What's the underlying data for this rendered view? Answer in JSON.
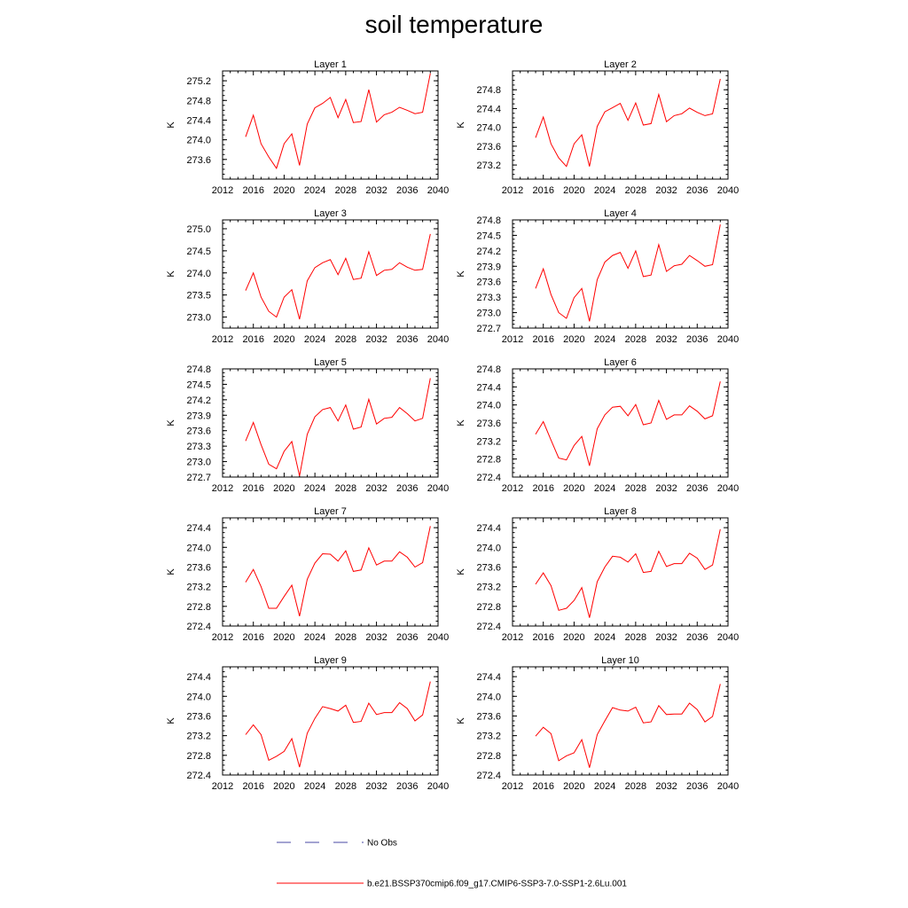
{
  "title": "soil temperature",
  "legend": {
    "obs_label": "No Obs",
    "obs_color": "#4a4aa6",
    "model_label": "b.e21.BSSP370cmip6.f09_g17.CMIP6-SSP3-7.0-SSP1-2.6Lu.001",
    "model_color": "#ff0000"
  },
  "chart_data": [
    {
      "type": "line",
      "title": "Layer 1",
      "ylabel": "K",
      "xlim": [
        2012,
        2040
      ],
      "ylim": [
        273.2,
        275.4
      ],
      "xticks": [
        "2012",
        "2016",
        "2020",
        "2024",
        "2028",
        "2032",
        "2036",
        "2040"
      ],
      "yticks": [
        "273.6",
        "274.0",
        "274.4",
        "274.8",
        "275.2"
      ],
      "x": [
        2015,
        2016,
        2017,
        2018,
        2019,
        2020,
        2021,
        2022,
        2023,
        2024,
        2025,
        2026,
        2027,
        2028,
        2029,
        2030,
        2031,
        2032,
        2033,
        2034,
        2035,
        2036,
        2037,
        2038,
        2039
      ],
      "series": [
        {
          "values": [
            274.06,
            274.5,
            273.92,
            273.65,
            273.42,
            273.92,
            274.12,
            273.48,
            274.32,
            274.65,
            274.74,
            274.86,
            274.45,
            274.82,
            274.35,
            274.37,
            275.02,
            274.36,
            274.51,
            274.56,
            274.66,
            274.6,
            274.53,
            274.56,
            275.35
          ]
        }
      ]
    },
    {
      "type": "line",
      "title": "Layer 2",
      "ylabel": "K",
      "xlim": [
        2012,
        2040
      ],
      "ylim": [
        272.9,
        275.2
      ],
      "xticks": [
        "2012",
        "2016",
        "2020",
        "2024",
        "2028",
        "2032",
        "2036",
        "2040"
      ],
      "yticks": [
        "273.2",
        "273.6",
        "274.0",
        "274.4",
        "274.8"
      ],
      "x": [
        2015,
        2016,
        2017,
        2018,
        2019,
        2020,
        2021,
        2022,
        2023,
        2024,
        2025,
        2026,
        2027,
        2028,
        2029,
        2030,
        2031,
        2032,
        2033,
        2034,
        2035,
        2036,
        2037,
        2038,
        2039
      ],
      "series": [
        {
          "values": [
            273.78,
            274.22,
            273.65,
            273.35,
            273.17,
            273.65,
            273.84,
            273.17,
            274.02,
            274.33,
            274.42,
            274.51,
            274.15,
            274.52,
            274.05,
            274.08,
            274.7,
            274.12,
            274.25,
            274.29,
            274.41,
            274.32,
            274.25,
            274.29,
            275.03
          ]
        }
      ]
    },
    {
      "type": "line",
      "title": "Layer 3",
      "ylabel": "K",
      "xlim": [
        2012,
        2040
      ],
      "ylim": [
        272.75,
        275.2
      ],
      "xticks": [
        "2012",
        "2016",
        "2020",
        "2024",
        "2028",
        "2032",
        "2036",
        "2040"
      ],
      "yticks": [
        "273.0",
        "273.5",
        "274.0",
        "274.5",
        "275.0"
      ],
      "x": [
        2015,
        2016,
        2017,
        2018,
        2019,
        2020,
        2021,
        2022,
        2023,
        2024,
        2025,
        2026,
        2027,
        2028,
        2029,
        2030,
        2031,
        2032,
        2033,
        2034,
        2035,
        2036,
        2037,
        2038,
        2039
      ],
      "series": [
        {
          "values": [
            273.6,
            274.0,
            273.45,
            273.13,
            273.0,
            273.45,
            273.62,
            272.95,
            273.82,
            274.12,
            274.23,
            274.3,
            273.96,
            274.33,
            273.85,
            273.88,
            274.48,
            273.94,
            274.06,
            274.08,
            274.23,
            274.13,
            274.06,
            274.08,
            274.88
          ]
        }
      ]
    },
    {
      "type": "line",
      "title": "Layer 4",
      "ylabel": "K",
      "xlim": [
        2012,
        2040
      ],
      "ylim": [
        272.7,
        274.8
      ],
      "xticks": [
        "2012",
        "2016",
        "2020",
        "2024",
        "2028",
        "2032",
        "2036",
        "2040"
      ],
      "yticks": [
        "272.7",
        "273.0",
        "273.3",
        "273.6",
        "273.9",
        "274.2",
        "274.5",
        "274.8"
      ],
      "x": [
        2015,
        2016,
        2017,
        2018,
        2019,
        2020,
        2021,
        2022,
        2023,
        2024,
        2025,
        2026,
        2027,
        2028,
        2029,
        2030,
        2031,
        2032,
        2033,
        2034,
        2035,
        2036,
        2037,
        2038,
        2039
      ],
      "series": [
        {
          "values": [
            273.47,
            273.85,
            273.35,
            273.0,
            272.89,
            273.29,
            273.47,
            272.83,
            273.64,
            273.98,
            274.11,
            274.17,
            273.86,
            274.2,
            273.7,
            273.73,
            274.32,
            273.8,
            273.91,
            273.94,
            274.11,
            274.01,
            273.9,
            273.93,
            274.71
          ]
        }
      ]
    },
    {
      "type": "line",
      "title": "Layer 5",
      "ylabel": "K",
      "xlim": [
        2012,
        2040
      ],
      "ylim": [
        272.7,
        274.8
      ],
      "xticks": [
        "2012",
        "2016",
        "2020",
        "2024",
        "2028",
        "2032",
        "2036",
        "2040"
      ],
      "yticks": [
        "272.7",
        "273.0",
        "273.3",
        "273.6",
        "273.9",
        "274.2",
        "274.5",
        "274.8"
      ],
      "x": [
        2015,
        2016,
        2017,
        2018,
        2019,
        2020,
        2021,
        2022,
        2023,
        2024,
        2025,
        2026,
        2027,
        2028,
        2029,
        2030,
        2031,
        2032,
        2033,
        2034,
        2035,
        2036,
        2037,
        2038,
        2039
      ],
      "series": [
        {
          "values": [
            273.4,
            273.76,
            273.33,
            272.95,
            272.86,
            273.2,
            273.39,
            272.72,
            273.53,
            273.87,
            274.01,
            274.05,
            273.79,
            274.1,
            273.63,
            273.67,
            274.21,
            273.73,
            273.84,
            273.86,
            274.05,
            273.93,
            273.79,
            273.84,
            274.62
          ]
        }
      ]
    },
    {
      "type": "line",
      "title": "Layer 6",
      "ylabel": "K",
      "xlim": [
        2012,
        2040
      ],
      "ylim": [
        272.4,
        274.8
      ],
      "xticks": [
        "2012",
        "2016",
        "2020",
        "2024",
        "2028",
        "2032",
        "2036",
        "2040"
      ],
      "yticks": [
        "272.4",
        "272.8",
        "273.2",
        "273.6",
        "274.0",
        "274.4",
        "274.8"
      ],
      "x": [
        2015,
        2016,
        2017,
        2018,
        2019,
        2020,
        2021,
        2022,
        2023,
        2024,
        2025,
        2026,
        2027,
        2028,
        2029,
        2030,
        2031,
        2032,
        2033,
        2034,
        2035,
        2036,
        2037,
        2038,
        2039
      ],
      "series": [
        {
          "values": [
            273.35,
            273.63,
            273.22,
            272.82,
            272.78,
            273.1,
            273.3,
            272.65,
            273.47,
            273.78,
            273.95,
            273.97,
            273.76,
            274.01,
            273.56,
            273.6,
            274.1,
            273.68,
            273.78,
            273.78,
            273.98,
            273.86,
            273.69,
            273.76,
            274.52
          ]
        }
      ]
    },
    {
      "type": "line",
      "title": "Layer 7",
      "ylabel": "K",
      "xlim": [
        2012,
        2040
      ],
      "ylim": [
        272.4,
        274.6
      ],
      "xticks": [
        "2012",
        "2016",
        "2020",
        "2024",
        "2028",
        "2032",
        "2036",
        "2040"
      ],
      "yticks": [
        "272.4",
        "272.8",
        "273.2",
        "273.6",
        "274.0",
        "274.4"
      ],
      "x": [
        2015,
        2016,
        2017,
        2018,
        2019,
        2020,
        2021,
        2022,
        2023,
        2024,
        2025,
        2026,
        2027,
        2028,
        2029,
        2030,
        2031,
        2032,
        2033,
        2034,
        2035,
        2036,
        2037,
        2038,
        2039
      ],
      "series": [
        {
          "values": [
            273.29,
            273.55,
            273.2,
            272.76,
            272.76,
            273.0,
            273.23,
            272.6,
            273.35,
            273.68,
            273.87,
            273.86,
            273.72,
            273.93,
            273.51,
            273.54,
            273.99,
            273.64,
            273.72,
            273.72,
            273.91,
            273.8,
            273.6,
            273.69,
            274.43
          ]
        }
      ]
    },
    {
      "type": "line",
      "title": "Layer 8",
      "ylabel": "K",
      "xlim": [
        2012,
        2040
      ],
      "ylim": [
        272.4,
        274.6
      ],
      "xticks": [
        "2012",
        "2016",
        "2020",
        "2024",
        "2028",
        "2032",
        "2036",
        "2040"
      ],
      "yticks": [
        "272.4",
        "272.8",
        "273.2",
        "273.6",
        "274.0",
        "274.4"
      ],
      "x": [
        2015,
        2016,
        2017,
        2018,
        2019,
        2020,
        2021,
        2022,
        2023,
        2024,
        2025,
        2026,
        2027,
        2028,
        2029,
        2030,
        2031,
        2032,
        2033,
        2034,
        2035,
        2036,
        2037,
        2038,
        2039
      ],
      "series": [
        {
          "values": [
            273.25,
            273.48,
            273.22,
            272.72,
            272.76,
            272.92,
            273.18,
            272.57,
            273.3,
            273.6,
            273.82,
            273.8,
            273.7,
            273.87,
            273.49,
            273.51,
            273.92,
            273.61,
            273.67,
            273.67,
            273.88,
            273.78,
            273.55,
            273.64,
            274.37
          ]
        }
      ]
    },
    {
      "type": "line",
      "title": "Layer 9",
      "ylabel": "K",
      "xlim": [
        2012,
        2040
      ],
      "ylim": [
        272.4,
        274.6
      ],
      "xticks": [
        "2012",
        "2016",
        "2020",
        "2024",
        "2028",
        "2032",
        "2036",
        "2040"
      ],
      "yticks": [
        "272.4",
        "272.8",
        "273.2",
        "273.6",
        "274.0",
        "274.4"
      ],
      "x": [
        2015,
        2016,
        2017,
        2018,
        2019,
        2020,
        2021,
        2022,
        2023,
        2024,
        2025,
        2026,
        2027,
        2028,
        2029,
        2030,
        2031,
        2032,
        2033,
        2034,
        2035,
        2036,
        2037,
        2038,
        2039
      ],
      "series": [
        {
          "values": [
            273.22,
            273.42,
            273.22,
            272.7,
            272.78,
            272.88,
            273.14,
            272.56,
            273.25,
            273.55,
            273.79,
            273.75,
            273.7,
            273.82,
            273.47,
            273.49,
            273.86,
            273.63,
            273.67,
            273.67,
            273.87,
            273.75,
            273.5,
            273.62,
            274.3
          ]
        }
      ]
    },
    {
      "type": "line",
      "title": "Layer 10",
      "ylabel": "K",
      "xlim": [
        2012,
        2040
      ],
      "ylim": [
        272.4,
        274.6
      ],
      "xticks": [
        "2012",
        "2016",
        "2020",
        "2024",
        "2028",
        "2032",
        "2036",
        "2040"
      ],
      "yticks": [
        "272.4",
        "272.8",
        "273.2",
        "273.6",
        "274.0",
        "274.4"
      ],
      "x": [
        2015,
        2016,
        2017,
        2018,
        2019,
        2020,
        2021,
        2022,
        2023,
        2024,
        2025,
        2026,
        2027,
        2028,
        2029,
        2030,
        2031,
        2032,
        2033,
        2034,
        2035,
        2036,
        2037,
        2038,
        2039
      ],
      "series": [
        {
          "values": [
            273.19,
            273.37,
            273.24,
            272.69,
            272.79,
            272.85,
            273.12,
            272.55,
            273.22,
            273.5,
            273.77,
            273.72,
            273.7,
            273.78,
            273.46,
            273.48,
            273.81,
            273.63,
            273.64,
            273.64,
            273.86,
            273.73,
            273.48,
            273.59,
            274.25
          ]
        }
      ]
    }
  ]
}
